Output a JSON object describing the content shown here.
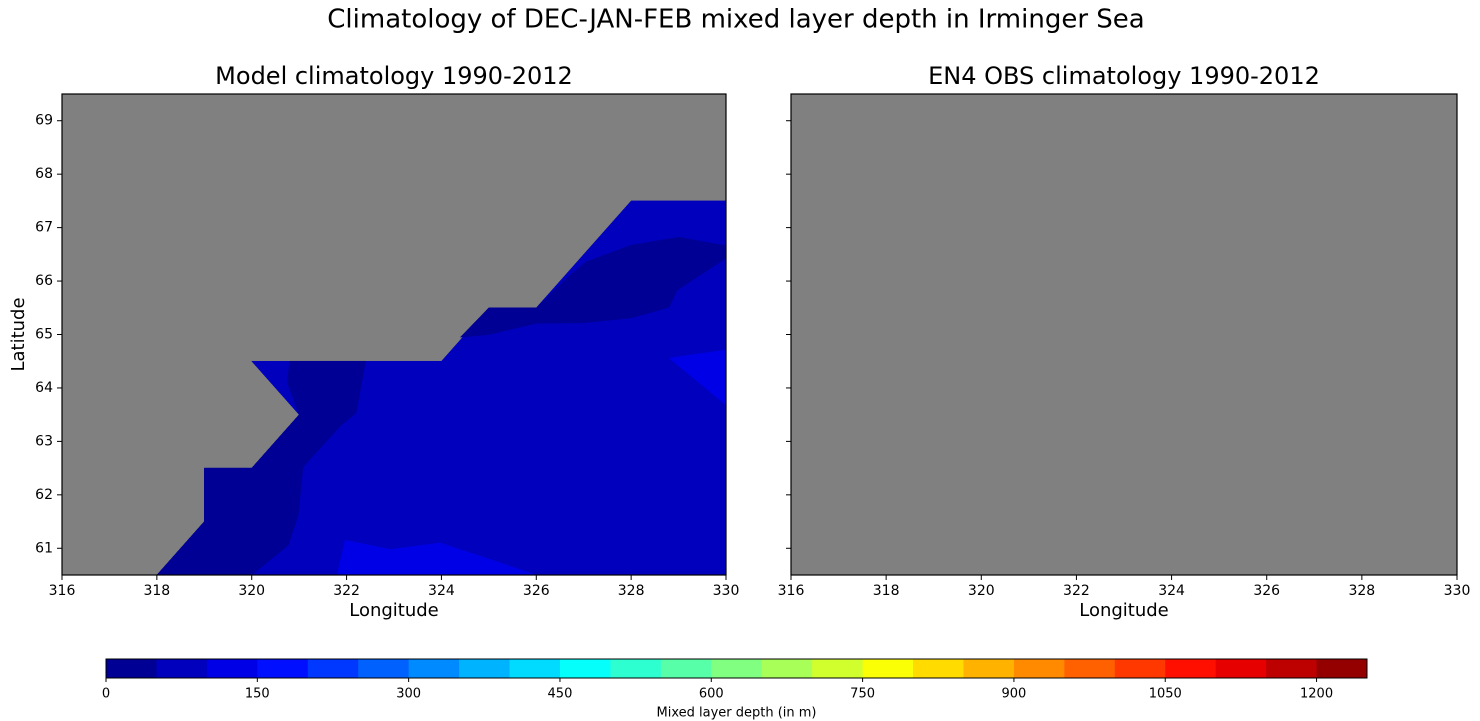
{
  "title": "Climatology of DEC-JAN-FEB mixed layer depth in Irminger Sea",
  "chart_data": [
    {
      "type": "contour",
      "title": "Model climatology 1990-2012",
      "xlabel": "Longitude",
      "ylabel": "Latitude",
      "xlim": [
        316,
        330
      ],
      "ylim": [
        60.5,
        69.5
      ],
      "xticks": [
        316,
        318,
        320,
        322,
        324,
        326,
        328,
        330
      ],
      "yticks": [
        61,
        62,
        63,
        64,
        65,
        66,
        67,
        68,
        69
      ],
      "ytick_labels": true,
      "background": "#808080",
      "regions": [
        {
          "level": 50,
          "points": [
            [
              318,
              60.5
            ],
            [
              319,
              61.5
            ],
            [
              319,
              62.5
            ],
            [
              320,
              62.5
            ],
            [
              321,
              63.5
            ],
            [
              320,
              64.5
            ],
            [
              324,
              64.5
            ],
            [
              325,
              65.5
            ],
            [
              326,
              65.5
            ],
            [
              328,
              67.5
            ],
            [
              330,
              67.5
            ],
            [
              330,
              60.5
            ]
          ]
        },
        {
          "level": 0,
          "points": [
            [
              318,
              60.5
            ],
            [
              319,
              61.5
            ],
            [
              319,
              62.5
            ],
            [
              320,
              62.5
            ],
            [
              321,
              63.5
            ],
            [
              320.75,
              64.1
            ],
            [
              320.8,
              64.5
            ],
            [
              322.4,
              64.5
            ],
            [
              322.2,
              63.53
            ],
            [
              321.88,
              63.3
            ],
            [
              321.08,
              62.52
            ],
            [
              320.98,
              61.62
            ],
            [
              320.77,
              61.06
            ],
            [
              320,
              60.5
            ]
          ]
        },
        {
          "level": 0,
          "points": [
            [
              324.4,
              64.95
            ],
            [
              325,
              65.5
            ],
            [
              326,
              65.5
            ],
            [
              326.7,
              66.1
            ],
            [
              327.05,
              66.36
            ],
            [
              328,
              66.67
            ],
            [
              329,
              66.82
            ],
            [
              330,
              66.66
            ],
            [
              330,
              66.43
            ],
            [
              328.97,
              65.83
            ],
            [
              328.8,
              65.51
            ],
            [
              328,
              65.31
            ],
            [
              327,
              65.22
            ],
            [
              326,
              65.21
            ],
            [
              325,
              65.0
            ]
          ]
        },
        {
          "level": 100,
          "points": [
            [
              330,
              64.71
            ],
            [
              328.8,
              64.56
            ],
            [
              330,
              63.68
            ]
          ]
        },
        {
          "level": 100,
          "points": [
            [
              321.8,
              60.5
            ],
            [
              321.97,
              61.15
            ],
            [
              322.92,
              60.98
            ],
            [
              323.97,
              61.1
            ],
            [
              325,
              60.8
            ],
            [
              326,
              60.5
            ]
          ]
        }
      ]
    },
    {
      "type": "contour",
      "title": "EN4 OBS climatology 1990-2012",
      "xlabel": "Longitude",
      "xlim": [
        316,
        330
      ],
      "ylim": [
        60.5,
        69.5
      ],
      "xticks": [
        316,
        318,
        320,
        322,
        324,
        326,
        328,
        330
      ],
      "yticks": [
        61,
        62,
        63,
        64,
        65,
        66,
        67,
        68,
        69
      ],
      "ytick_labels": false,
      "background": "#808080",
      "regions": []
    },
    {
      "type": "colorbar",
      "label": "Mixed layer depth (in m)",
      "levels": [
        0,
        50,
        100,
        150,
        200,
        250,
        300,
        350,
        400,
        450,
        500,
        550,
        600,
        650,
        700,
        750,
        800,
        850,
        900,
        950,
        1000,
        1050,
        1100,
        1150,
        1200,
        1250
      ],
      "colors": [
        "#000094",
        "#0000bd",
        "#0000e6",
        "#000fff",
        "#0038ff",
        "#0061ff",
        "#008aff",
        "#00b3ff",
        "#00dbff",
        "#05fffa",
        "#2effd1",
        "#57ffa8",
        "#80ff80",
        "#a8ff57",
        "#d1ff2e",
        "#faff05",
        "#ffdb00",
        "#ffb300",
        "#ff8a00",
        "#ff6100",
        "#ff3800",
        "#ff0f00",
        "#e60000",
        "#bd0000",
        "#940000"
      ],
      "xticks": [
        0,
        150,
        300,
        450,
        600,
        750,
        900,
        1050,
        1200
      ]
    }
  ]
}
